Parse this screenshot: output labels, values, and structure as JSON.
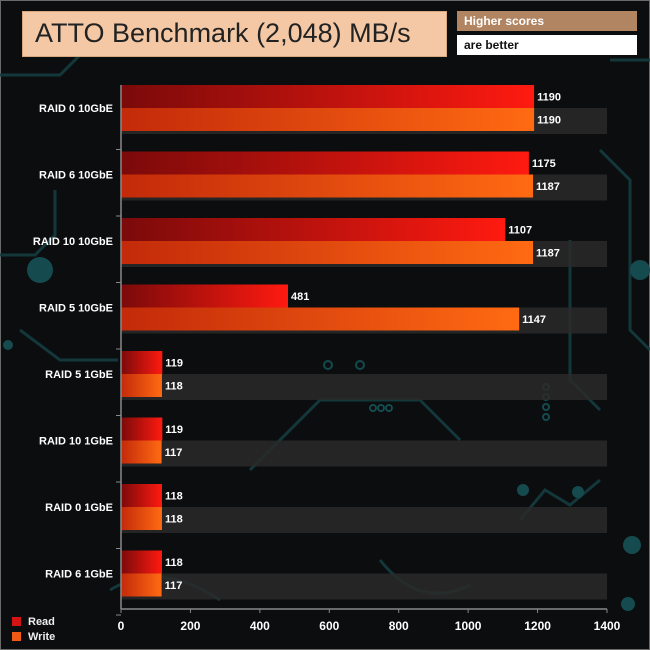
{
  "header": {
    "title": "ATTO Benchmark (2,048) MB/s",
    "note_line1": "Higher scores",
    "note_line2": "are better"
  },
  "legend": [
    {
      "label": "Read",
      "color": "#d31414"
    },
    {
      "label": "Write",
      "color": "#f05a14"
    }
  ],
  "colors": {
    "read_dark": "#7a0a0a",
    "read_light": "#ff1a10",
    "write_dark": "#c32a0a",
    "write_light": "#ff6a12",
    "axis": "#8a8a8a",
    "band": "#2a2a2a"
  },
  "chart_data": {
    "type": "bar",
    "orientation": "horizontal",
    "title": "ATTO Benchmark (2,048) MB/s",
    "categories": [
      "RAID 0 10GbE",
      "RAID 6 10GbE",
      "RAID 10 10GbE",
      "RAID 5 10GbE",
      "RAID 5 1GbE",
      "RAID 10 1GbE",
      "RAID 0 1GbE",
      "RAID 6 1GbE"
    ],
    "series": [
      {
        "name": "Read",
        "values": [
          1190,
          1175,
          1107,
          481,
          119,
          119,
          118,
          118
        ]
      },
      {
        "name": "Write",
        "values": [
          1190,
          1187,
          1187,
          1147,
          118,
          117,
          118,
          117
        ]
      }
    ],
    "xlim": [
      0,
      1400
    ],
    "xticks": [
      "0",
      "200",
      "400",
      "600",
      "800",
      "1000",
      "1200",
      "1400"
    ],
    "xlabel": "",
    "ylabel": "",
    "legend_position": "bottom-left",
    "grid": false
  }
}
